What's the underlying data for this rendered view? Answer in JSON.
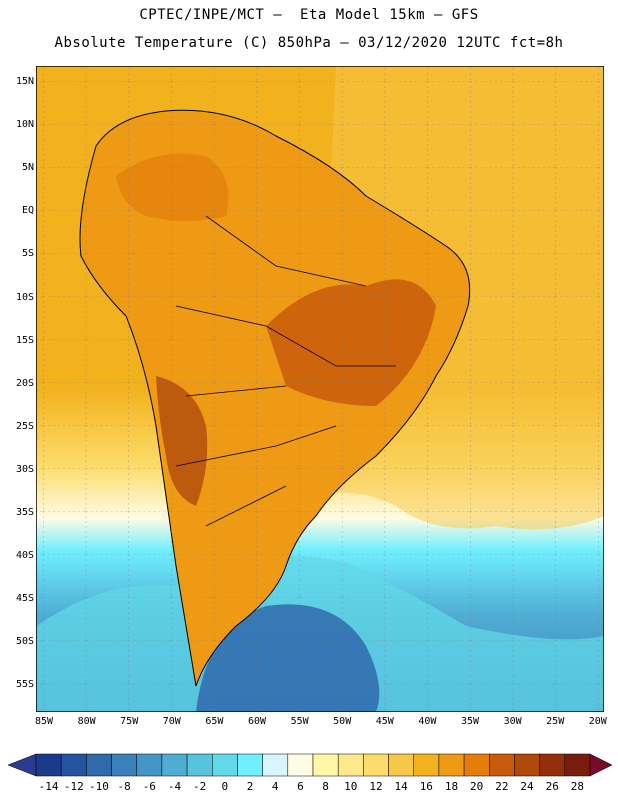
{
  "title": {
    "line1": "CPTEC/INPE/MCT —  Eta Model 15km — GFS",
    "line2": "Absolute Temperature (C) 850hPa — 03/12/2020 12UTC fct=8h"
  },
  "map": {
    "region": "South America",
    "variable": "Absolute Temperature 850hPa",
    "units": "C",
    "lat_labels": [
      "15N",
      "10N",
      "5N",
      "EQ",
      "5S",
      "10S",
      "15S",
      "20S",
      "25S",
      "30S",
      "35S",
      "40S",
      "45S",
      "50S",
      "55S"
    ],
    "lon_labels": [
      "85W",
      "80W",
      "75W",
      "70W",
      "65W",
      "60W",
      "55W",
      "50W",
      "45W",
      "40W",
      "35W",
      "30W",
      "25W",
      "20W"
    ]
  },
  "colorbar": {
    "labels": [
      "-14",
      "-12",
      "-10",
      "-8",
      "-6",
      "-4",
      "-2",
      "0",
      "2",
      "4",
      "6",
      "8",
      "10",
      "12",
      "14",
      "16",
      "18",
      "20",
      "22",
      "24",
      "26",
      "28"
    ],
    "colors": [
      "#1a3a8c",
      "#2453a0",
      "#2f6aad",
      "#3a80ba",
      "#4596c6",
      "#4fadd3",
      "#59c2dd",
      "#62d8e8",
      "#6fefff",
      "#d6f5ff",
      "#fffbe4",
      "#fff6a8",
      "#fee98a",
      "#fddc6b",
      "#f7c748",
      "#f2b21e",
      "#ee9a14",
      "#e47d0a",
      "#c85b0b",
      "#b04a0b",
      "#942f0c",
      "#7a1c0c"
    ],
    "under_color": "#2b3b8f",
    "over_color": "#7a0a2a"
  }
}
